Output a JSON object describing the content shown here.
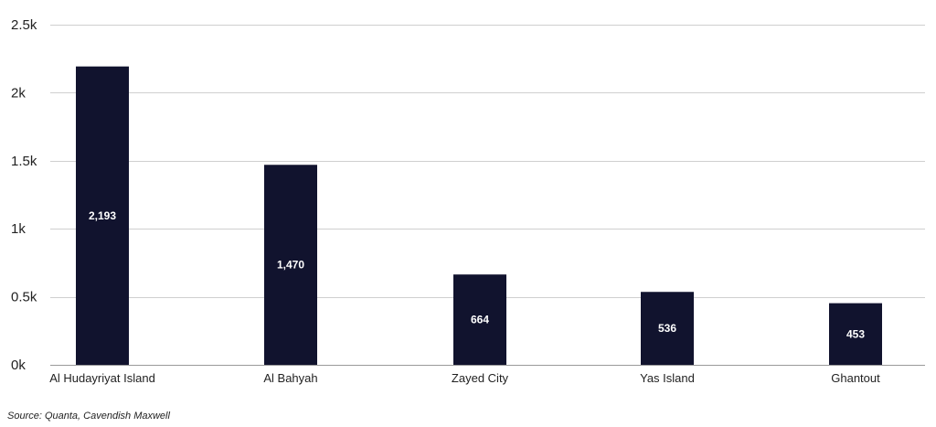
{
  "chart_data": {
    "type": "bar",
    "title": "",
    "xlabel": "",
    "ylabel": "",
    "categories": [
      "Al Hudayriyat Island",
      "Al Bahyah",
      "Zayed City",
      "Yas Island",
      "Ghantout"
    ],
    "values": [
      2193,
      1470,
      664,
      536,
      453
    ],
    "data_labels": [
      "2,193",
      "1,470",
      "664",
      "536",
      "453"
    ],
    "ylim": [
      0,
      2500
    ],
    "yticks": [
      0,
      500,
      1000,
      1500,
      2000,
      2500
    ],
    "ytick_labels": [
      "0k",
      "0.5k",
      "1k",
      "1.5k",
      "2k",
      "2.5k"
    ],
    "grid": true,
    "legend": "none",
    "bar_color": "#11132e"
  },
  "source": "Source: Quanta, Cavendish Maxwell"
}
